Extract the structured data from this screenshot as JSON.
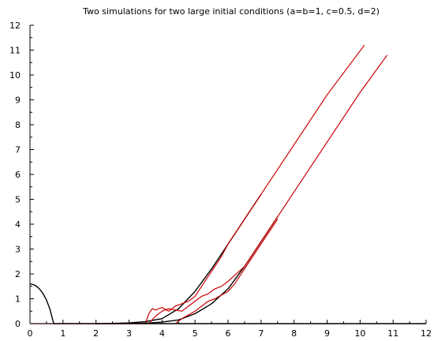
{
  "chart_data": {
    "type": "line",
    "title": "Two simulations for two  large initial conditions (a=b=1, c=0.5, d=2)",
    "xlabel": "",
    "ylabel": "",
    "xlim": [
      0,
      12
    ],
    "ylim": [
      0,
      12
    ],
    "x_ticks": [
      0,
      1,
      2,
      3,
      4,
      5,
      6,
      7,
      8,
      9,
      10,
      11,
      12
    ],
    "y_ticks": [
      0,
      1,
      2,
      3,
      4,
      5,
      6,
      7,
      8,
      9,
      10,
      11,
      12
    ],
    "grid": false,
    "colors": {
      "deterministic": "#000000",
      "stochastic": "#cc0000"
    },
    "series": [
      {
        "style": "deterministic",
        "x": [
          0,
          0.1,
          0.2,
          0.3,
          0.4,
          0.5,
          0.6,
          0.68,
          0.72,
          12
        ],
        "y": [
          1.6,
          1.57,
          1.5,
          1.38,
          1.2,
          0.95,
          0.6,
          0.2,
          0,
          0
        ]
      },
      {
        "style": "deterministic",
        "x": [
          2.0,
          2.5,
          3.0,
          3.5,
          4.0,
          4.5,
          5.0,
          5.5,
          6.0,
          6.5,
          7.0
        ],
        "y": [
          0,
          0.01,
          0.03,
          0.08,
          0.2,
          0.6,
          1.3,
          2.2,
          3.2,
          4.2,
          5.2
        ]
      },
      {
        "style": "deterministic",
        "x": [
          2.5,
          3.0,
          3.5,
          4.0,
          4.5,
          5.0,
          5.5,
          6.0,
          6.5,
          7.0,
          7.5
        ],
        "y": [
          0,
          0.01,
          0.02,
          0.06,
          0.15,
          0.4,
          0.8,
          1.4,
          2.3,
          3.3,
          4.3
        ]
      },
      {
        "style": "stochastic",
        "x": [
          3.5,
          3.6,
          3.7,
          3.8,
          4.0,
          4.2,
          4.4,
          4.6,
          4.8,
          5.0,
          5.2,
          5.4,
          5.6,
          5.8,
          6.0,
          6.5,
          7.0,
          8.0,
          9.0,
          10.13
        ],
        "y": [
          0,
          0.4,
          0.6,
          0.55,
          0.65,
          0.5,
          0.7,
          0.8,
          0.9,
          1.1,
          1.5,
          1.9,
          2.3,
          2.7,
          3.2,
          4.2,
          5.2,
          7.2,
          9.2,
          11.2
        ]
      },
      {
        "style": "stochastic",
        "x": [
          3.6,
          3.8,
          4.0,
          4.2,
          4.4,
          4.6,
          4.8,
          5.0,
          5.2,
          5.4,
          5.6,
          5.8,
          6.0,
          6.5,
          7.0,
          7.5,
          8.0,
          9.0,
          10.0,
          10.82
        ],
        "y": [
          0,
          0.3,
          0.5,
          0.6,
          0.55,
          0.5,
          0.7,
          0.9,
          1.1,
          1.2,
          1.4,
          1.5,
          1.7,
          2.3,
          3.3,
          4.3,
          5.3,
          7.3,
          9.3,
          10.8
        ]
      },
      {
        "style": "stochastic",
        "x": [
          4.4,
          4.6,
          4.8,
          5.0,
          5.2,
          5.4,
          5.6,
          5.8,
          6.0,
          6.2,
          6.5,
          7.0,
          7.5
        ],
        "y": [
          0,
          0.2,
          0.35,
          0.5,
          0.7,
          0.9,
          1.0,
          1.15,
          1.3,
          1.6,
          2.2,
          3.2,
          4.2
        ]
      },
      {
        "style": "stochastic",
        "x": [
          0,
          3.5
        ],
        "y": [
          0,
          0
        ]
      }
    ]
  }
}
